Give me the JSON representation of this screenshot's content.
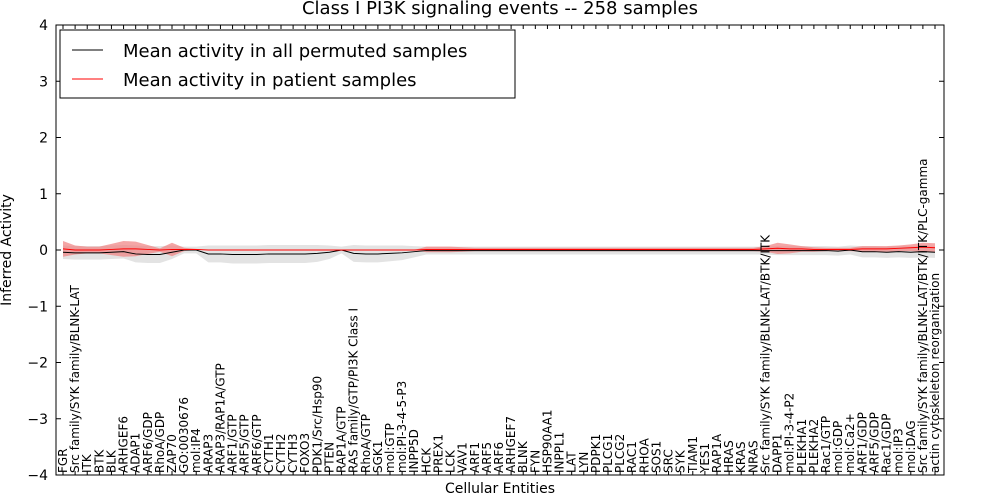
{
  "chart_data": {
    "type": "line",
    "title": "Class I PI3K signaling events -- 258 samples",
    "xlabel": "Cellular Entities",
    "ylabel": "Inferred Activity",
    "ylim": [
      -4,
      4
    ],
    "yticks": [
      -4,
      -3,
      -2,
      -1,
      0,
      1,
      2,
      3,
      4
    ],
    "ytick_labels": [
      "−4",
      "−3",
      "−2",
      "−1",
      "0",
      "1",
      "2",
      "3",
      "4"
    ],
    "legend_position": "top-left",
    "categories": [
      "FGR",
      "Src family/SYK family/BLNK-LAT",
      "ITK",
      "BTK",
      "BLK",
      "ARHGEF6",
      "ADAP1",
      "ARF6/GDP",
      "RhoA/GDP",
      "ZAP70",
      "GO:0030676",
      "mol:IP4",
      "ARAP3",
      "ARAP3/RAP1A/GTP",
      "ARF1/GTP",
      "ARF5/GTP",
      "ARF6/GTP",
      "CYTH1",
      "CYTH2",
      "CYTH3",
      "FOXO3",
      "PDK1/Src/Hsp90",
      "PTEN",
      "RAP1A/GTP",
      "RAS family/GTP/PI3K Class I",
      "RhoA/GTP",
      "SGK1",
      "mol:GTP",
      "mol:PI-3-4-5-P3",
      "INPP5D",
      "HCK",
      "PREX1",
      "LCK",
      "VAV1",
      "ARF1",
      "ARF5",
      "ARF6",
      "ARHGEF7",
      "BLNK",
      "FYN",
      "HSP90AA1",
      "INPPL1",
      "LAT",
      "LYN",
      "PDPK1",
      "PLCG1",
      "PLCG2",
      "RAC1",
      "RHOA",
      "SOS1",
      "SRC",
      "SYK",
      "TIAM1",
      "YES1",
      "RAP1A",
      "HRAS",
      "KRAS",
      "NRAS",
      "Src family/SYK family/BLNK-LAT/BTK/ITK",
      "DAPP1",
      "mol:PI-3-4-P2",
      "PLEKHA1",
      "PLEKHA2",
      "Rac1/GTP",
      "mol:GDP",
      "mol:Ca2+",
      "ARF1/GDP",
      "ARF5/GDP",
      "Rac1/GDP",
      "mol:IP3",
      "mol:DAG",
      "Src family/SYK family/BLNK-LAT/BTK/ITK/PLC-gamma",
      "actin cytoskeleton reorganization"
    ],
    "series": [
      {
        "name": "Mean activity in all permuted samples",
        "color": "#000000",
        "values": [
          -0.04,
          -0.05,
          -0.05,
          -0.05,
          -0.04,
          -0.03,
          -0.07,
          -0.08,
          -0.08,
          -0.04,
          0.0,
          0.0,
          -0.07,
          -0.07,
          -0.08,
          -0.08,
          -0.08,
          -0.07,
          -0.07,
          -0.07,
          -0.07,
          -0.06,
          -0.04,
          0.0,
          -0.06,
          -0.07,
          -0.07,
          -0.06,
          -0.05,
          -0.03,
          -0.01,
          -0.01,
          -0.01,
          -0.01,
          -0.01,
          -0.01,
          -0.01,
          -0.01,
          -0.01,
          -0.01,
          -0.01,
          -0.01,
          -0.01,
          -0.01,
          -0.01,
          -0.01,
          -0.01,
          -0.01,
          -0.01,
          -0.01,
          -0.01,
          -0.01,
          -0.01,
          -0.01,
          -0.01,
          -0.01,
          -0.01,
          -0.01,
          -0.01,
          -0.01,
          -0.01,
          -0.01,
          -0.01,
          -0.01,
          -0.02,
          0.0,
          -0.03,
          -0.03,
          -0.04,
          -0.03,
          -0.04,
          -0.03,
          -0.04
        ],
        "band": [
          0.12,
          0.12,
          0.12,
          0.12,
          0.12,
          0.12,
          0.15,
          0.15,
          0.15,
          0.12,
          0.06,
          0.06,
          0.15,
          0.15,
          0.16,
          0.16,
          0.16,
          0.16,
          0.16,
          0.16,
          0.16,
          0.15,
          0.12,
          0.06,
          0.15,
          0.15,
          0.15,
          0.14,
          0.13,
          0.1,
          0.07,
          0.07,
          0.07,
          0.07,
          0.07,
          0.07,
          0.07,
          0.07,
          0.07,
          0.07,
          0.07,
          0.07,
          0.07,
          0.07,
          0.07,
          0.07,
          0.07,
          0.07,
          0.07,
          0.07,
          0.07,
          0.07,
          0.07,
          0.07,
          0.07,
          0.07,
          0.07,
          0.07,
          0.07,
          0.08,
          0.08,
          0.08,
          0.08,
          0.08,
          0.08,
          0.08,
          0.1,
          0.1,
          0.1,
          0.1,
          0.1,
          0.1,
          0.1
        ]
      },
      {
        "name": "Mean activity in patient samples",
        "color": "#ff0000",
        "values": [
          0.02,
          0.0,
          0.0,
          0.0,
          0.01,
          0.02,
          0.02,
          0.01,
          0.0,
          0.01,
          0.01,
          0.01,
          0.0,
          0.0,
          0.0,
          0.0,
          0.0,
          0.0,
          0.0,
          0.0,
          0.0,
          0.0,
          0.0,
          0.0,
          0.0,
          0.0,
          0.0,
          0.0,
          0.0,
          0.0,
          0.01,
          0.01,
          0.01,
          0.01,
          0.01,
          0.01,
          0.01,
          0.01,
          0.01,
          0.01,
          0.01,
          0.01,
          0.01,
          0.01,
          0.01,
          0.01,
          0.01,
          0.01,
          0.01,
          0.01,
          0.01,
          0.01,
          0.01,
          0.01,
          0.01,
          0.01,
          0.01,
          0.01,
          0.02,
          0.03,
          0.02,
          0.02,
          0.01,
          0.01,
          0.01,
          0.01,
          0.02,
          0.02,
          0.02,
          0.03,
          0.04,
          0.05,
          0.04
        ],
        "band": [
          0.14,
          0.08,
          0.06,
          0.06,
          0.1,
          0.14,
          0.13,
          0.08,
          0.03,
          0.12,
          0.03,
          0.01,
          0.0,
          0.0,
          0.0,
          0.0,
          0.0,
          0.0,
          0.0,
          0.0,
          0.0,
          0.0,
          0.0,
          0.0,
          0.0,
          0.0,
          0.0,
          0.0,
          0.0,
          0.0,
          0.05,
          0.05,
          0.05,
          0.04,
          0.03,
          0.03,
          0.03,
          0.03,
          0.03,
          0.03,
          0.03,
          0.03,
          0.03,
          0.03,
          0.03,
          0.03,
          0.03,
          0.03,
          0.03,
          0.03,
          0.03,
          0.03,
          0.03,
          0.03,
          0.03,
          0.03,
          0.03,
          0.03,
          0.05,
          0.1,
          0.08,
          0.05,
          0.04,
          0.03,
          0.03,
          0.03,
          0.05,
          0.05,
          0.05,
          0.05,
          0.06,
          0.08,
          0.08
        ]
      }
    ]
  }
}
